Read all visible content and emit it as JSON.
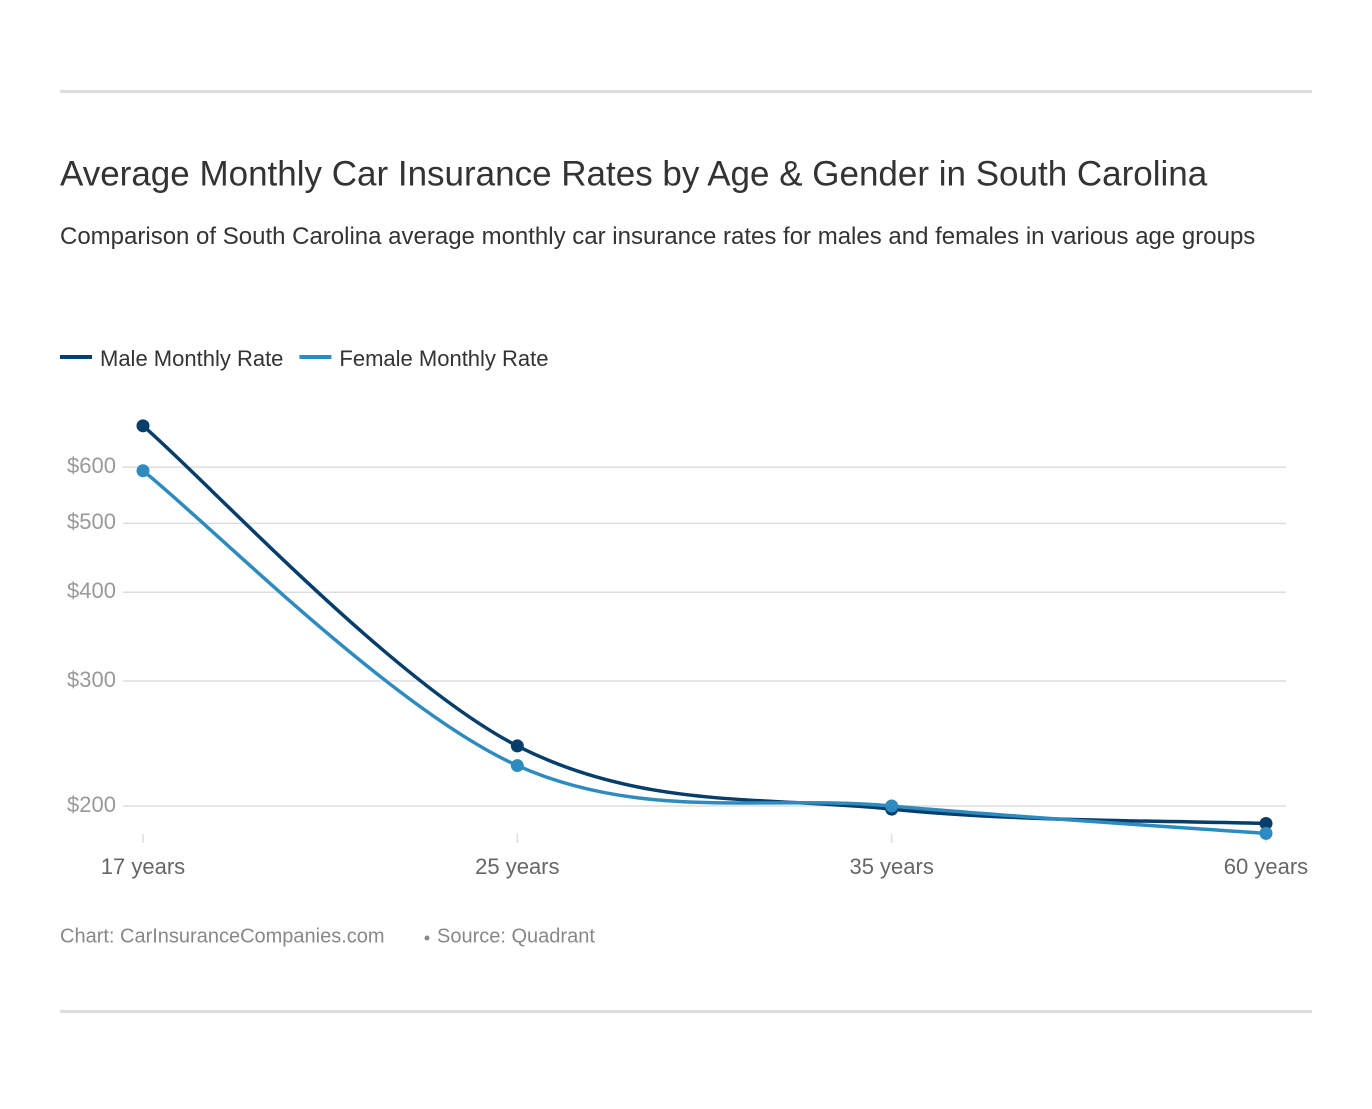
{
  "chart_data": {
    "type": "line",
    "title": "Average Monthly Car Insurance Rates by Age & Gender in South Carolina",
    "subtitle": "Comparison of South Carolina average monthly car insurance rates for males and females in various age groups",
    "categories": [
      "17 years",
      "25 years",
      "35 years",
      "60 years"
    ],
    "series": [
      {
        "name": "Male Monthly Rate",
        "color": "#053d6b",
        "values": [
          686,
          243,
          198,
          189
        ]
      },
      {
        "name": "Female Monthly Rate",
        "color": "#2e8bc0",
        "values": [
          593,
          228,
          200,
          183
        ]
      }
    ],
    "log_scale": true,
    "ylim": [
      180,
      700
    ],
    "yticks": [
      {
        "value": 200,
        "label": "$200"
      },
      {
        "value": 300,
        "label": "$300"
      },
      {
        "value": 400,
        "label": "$400"
      },
      {
        "value": 500,
        "label": "$500"
      },
      {
        "value": 600,
        "label": "$600"
      }
    ],
    "grid": true,
    "legend": "top-left",
    "credit": "Chart: CarInsuranceCompanies.com",
    "source": "Source: Quadrant"
  }
}
